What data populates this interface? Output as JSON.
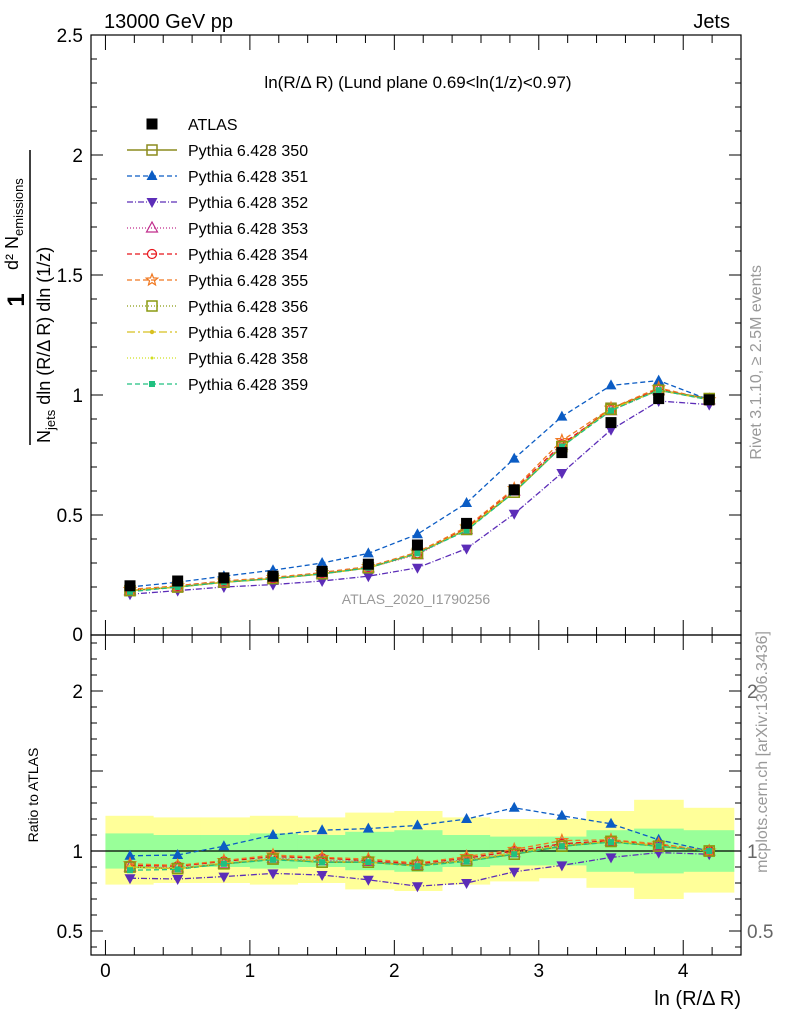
{
  "header": {
    "left": "13000 GeV pp",
    "right": "Jets",
    "right_vertical_1": "Rivet 3.1.10, ≥ 2.5M events",
    "right_vertical_2": "mcplots.cern.ch [arXiv:1306.3436]"
  },
  "colors": {
    "ATLAS": "#000000",
    "350": "#8c8c1e",
    "351": "#0b5cc4",
    "352": "#5c2db8",
    "353": "#c02c8c",
    "354": "#e8141a",
    "355": "#f07820",
    "356": "#8a9a10",
    "357": "#d8c020",
    "358": "#d0e020",
    "359": "#20c080",
    "band_inner": "#99ff99",
    "band_outer": "#ffff99"
  },
  "chart_data": [
    {
      "type": "line",
      "panel": "main",
      "title": "ln(R/Δ R) (Lund plane 0.69<ln(1/z)<0.97)",
      "ylabel_numerator": "d² N",
      "ylabel_numerator_sub": "emissions",
      "ylabel_prefix": "1",
      "ylabel_den_pre": "N",
      "ylabel_den_sub": "jets",
      "ylabel_den_post": " dln (R/Δ R) dln (1/z)",
      "watermark": "ATLAS_2020_I1790256",
      "xlim": [
        -0.1,
        4.4
      ],
      "ylim": [
        0,
        2.5
      ],
      "yticks": [
        "0.5",
        "1",
        "1.5",
        "2",
        "2.5"
      ],
      "ytick_zero": "0",
      "x": [
        0.17,
        0.5,
        0.82,
        1.16,
        1.5,
        1.82,
        2.16,
        2.5,
        2.83,
        3.16,
        3.5,
        3.83,
        4.18
      ],
      "series": [
        {
          "name": "ATLAS",
          "style": "data",
          "values": [
            0.205,
            0.225,
            0.238,
            0.245,
            0.265,
            0.295,
            0.375,
            0.465,
            0.605,
            0.76,
            0.885,
            0.985,
            0.98
          ]
        },
        {
          "name": "Pythia 6.428 350",
          "key": "350",
          "marker": "square-open",
          "dash": "",
          "width": 1.6,
          "values": [
            0.185,
            0.2,
            0.22,
            0.235,
            0.255,
            0.28,
            0.34,
            0.44,
            0.595,
            0.785,
            0.945,
            1.02,
            0.985
          ]
        },
        {
          "name": "Pythia 6.428 351",
          "key": "351",
          "marker": "triangle-up",
          "dash": "5,3",
          "width": 1.3,
          "values": [
            0.2,
            0.22,
            0.245,
            0.27,
            0.3,
            0.34,
            0.42,
            0.55,
            0.735,
            0.91,
            1.04,
            1.06,
            0.98
          ]
        },
        {
          "name": "Pythia 6.428 352",
          "key": "352",
          "marker": "triangle-down",
          "dash": "6,2,1,2",
          "width": 1.3,
          "values": [
            0.17,
            0.185,
            0.2,
            0.21,
            0.225,
            0.245,
            0.28,
            0.36,
            0.505,
            0.675,
            0.855,
            0.975,
            0.96
          ]
        },
        {
          "name": "Pythia 6.428 353",
          "key": "353",
          "marker": "triangle-open",
          "dash": "1,2",
          "width": 1.3,
          "values": [
            0.185,
            0.2,
            0.22,
            0.235,
            0.255,
            0.28,
            0.335,
            0.44,
            0.6,
            0.79,
            0.935,
            1.02,
            0.98
          ]
        },
        {
          "name": "Pythia 6.428 354",
          "key": "354",
          "marker": "circle-open",
          "dash": "5,3",
          "width": 1.3,
          "values": [
            0.185,
            0.205,
            0.225,
            0.235,
            0.26,
            0.285,
            0.34,
            0.445,
            0.605,
            0.795,
            0.94,
            1.025,
            0.98
          ]
        },
        {
          "name": "Pythia 6.428 355",
          "key": "355",
          "marker": "star-open",
          "dash": "5,3",
          "width": 1.3,
          "values": [
            0.19,
            0.205,
            0.225,
            0.24,
            0.26,
            0.285,
            0.345,
            0.45,
            0.61,
            0.81,
            0.945,
            1.03,
            0.98
          ]
        },
        {
          "name": "Pythia 6.428 356",
          "key": "356",
          "marker": "square-open",
          "dash": "1,2",
          "width": 1.3,
          "values": [
            0.185,
            0.2,
            0.22,
            0.235,
            0.255,
            0.28,
            0.34,
            0.44,
            0.595,
            0.785,
            0.94,
            1.02,
            0.985
          ]
        },
        {
          "name": "Pythia 6.428 357",
          "key": "357",
          "marker": "dot",
          "dash": "8,3,2,3",
          "width": 1.3,
          "values": [
            0.185,
            0.2,
            0.22,
            0.235,
            0.255,
            0.28,
            0.34,
            0.44,
            0.6,
            0.785,
            0.94,
            1.02,
            0.98
          ]
        },
        {
          "name": "Pythia 6.428 358",
          "key": "358",
          "marker": "dot-small",
          "dash": "1,2",
          "width": 1.3,
          "values": [
            0.185,
            0.2,
            0.22,
            0.235,
            0.255,
            0.28,
            0.34,
            0.44,
            0.595,
            0.785,
            0.94,
            1.02,
            0.98
          ]
        },
        {
          "name": "Pythia 6.428 359",
          "key": "359",
          "marker": "square-filled",
          "dash": "5,3",
          "width": 1.3,
          "values": [
            0.18,
            0.2,
            0.22,
            0.235,
            0.255,
            0.28,
            0.34,
            0.435,
            0.595,
            0.785,
            0.935,
            1.02,
            0.98
          ]
        }
      ]
    },
    {
      "type": "line",
      "panel": "ratio",
      "ylabel": "Ratio to ATLAS",
      "xlabel": "ln (R/Δ R)",
      "xlim": [
        -0.1,
        4.4
      ],
      "ylim": [
        0.35,
        2.35
      ],
      "yticks": [
        "0.5",
        "1",
        "2"
      ],
      "xticks": [
        "0",
        "1",
        "2",
        "3",
        "4"
      ],
      "x_edges": [
        0.0,
        0.33,
        0.66,
        1.0,
        1.33,
        1.66,
        2.0,
        2.33,
        2.66,
        3.0,
        3.33,
        3.66,
        4.0,
        4.35
      ],
      "band_inner": [
        [
          0.89,
          1.11
        ],
        [
          0.9,
          1.1
        ],
        [
          0.9,
          1.1
        ],
        [
          0.89,
          1.11
        ],
        [
          0.9,
          1.1
        ],
        [
          0.88,
          1.12
        ],
        [
          0.87,
          1.13
        ],
        [
          0.9,
          1.1
        ],
        [
          0.91,
          1.09
        ],
        [
          0.91,
          1.09
        ],
        [
          0.87,
          1.13
        ],
        [
          0.86,
          1.14
        ],
        [
          0.87,
          1.13
        ]
      ],
      "band_outer": [
        [
          0.79,
          1.22
        ],
        [
          0.8,
          1.21
        ],
        [
          0.8,
          1.21
        ],
        [
          0.79,
          1.22
        ],
        [
          0.8,
          1.21
        ],
        [
          0.76,
          1.24
        ],
        [
          0.75,
          1.25
        ],
        [
          0.79,
          1.21
        ],
        [
          0.81,
          1.2
        ],
        [
          0.83,
          1.2
        ],
        [
          0.77,
          1.25
        ],
        [
          0.7,
          1.32
        ],
        [
          0.74,
          1.27
        ]
      ],
      "series": [
        {
          "key": "350",
          "values": [
            0.9,
            0.89,
            0.92,
            0.95,
            0.93,
            0.93,
            0.91,
            0.94,
            0.98,
            1.03,
            1.06,
            1.03,
            1.0
          ]
        },
        {
          "key": "351",
          "values": [
            0.97,
            0.975,
            1.03,
            1.1,
            1.13,
            1.14,
            1.16,
            1.2,
            1.27,
            1.22,
            1.17,
            1.07,
            1.0
          ]
        },
        {
          "key": "352",
          "values": [
            0.83,
            0.825,
            0.84,
            0.86,
            0.85,
            0.82,
            0.78,
            0.8,
            0.87,
            0.91,
            0.96,
            0.99,
            0.98
          ]
        },
        {
          "key": "353",
          "values": [
            0.9,
            0.895,
            0.92,
            0.955,
            0.94,
            0.935,
            0.91,
            0.945,
            0.99,
            1.04,
            1.06,
            1.03,
            1.0
          ]
        },
        {
          "key": "354",
          "values": [
            0.91,
            0.905,
            0.935,
            0.965,
            0.955,
            0.94,
            0.92,
            0.955,
            1.0,
            1.045,
            1.065,
            1.04,
            1.0
          ]
        },
        {
          "key": "355",
          "values": [
            0.92,
            0.91,
            0.94,
            0.975,
            0.96,
            0.95,
            0.925,
            0.965,
            1.01,
            1.065,
            1.07,
            1.045,
            1.0
          ]
        },
        {
          "key": "356",
          "values": [
            0.9,
            0.89,
            0.92,
            0.95,
            0.93,
            0.93,
            0.91,
            0.94,
            0.98,
            1.03,
            1.06,
            1.03,
            1.0
          ]
        },
        {
          "key": "357",
          "values": [
            0.9,
            0.89,
            0.925,
            0.95,
            0.935,
            0.93,
            0.905,
            0.94,
            0.99,
            1.035,
            1.06,
            1.035,
            1.0
          ]
        },
        {
          "key": "358",
          "values": [
            0.9,
            0.89,
            0.92,
            0.95,
            0.93,
            0.93,
            0.905,
            0.94,
            0.985,
            1.03,
            1.06,
            1.03,
            1.0
          ]
        },
        {
          "key": "359",
          "values": [
            0.88,
            0.885,
            0.92,
            0.945,
            0.93,
            0.93,
            0.905,
            0.935,
            0.98,
            1.03,
            1.055,
            1.03,
            1.0
          ]
        }
      ]
    }
  ]
}
